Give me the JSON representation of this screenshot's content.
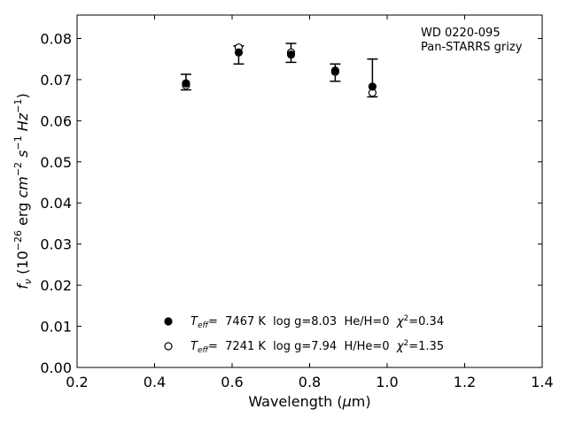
{
  "chart_data": {
    "type": "scatter",
    "xlabel": "Wavelength (μm)",
    "ylabel": "f_ν (10^-26 erg cm^-2 s^-1 Hz^-1)",
    "xlim": [
      0.2,
      1.4
    ],
    "ylim": [
      0.0,
      0.0857
    ],
    "x_ticks": [
      "0.2",
      "0.4",
      "0.6",
      "0.8",
      "1.0",
      "1.2",
      "1.4"
    ],
    "y_ticks": [
      "0.00",
      "0.01",
      "0.02",
      "0.03",
      "0.04",
      "0.05",
      "0.06",
      "0.07",
      "0.08"
    ],
    "grid": false,
    "annotation": [
      "WD 0220-095",
      "Pan-STARRS grizy"
    ],
    "observed": {
      "x": [
        0.481,
        0.617,
        0.752,
        0.866,
        0.962
      ],
      "y": [
        0.0693,
        0.076,
        0.0765,
        0.0718,
        0.0685
      ],
      "err_low": [
        0.0675,
        0.0738,
        0.0742,
        0.0696,
        0.0658
      ],
      "err_high": [
        0.0713,
        0.0782,
        0.0788,
        0.0738,
        0.075
      ]
    },
    "series": [
      {
        "marker": "filled",
        "label_parts": [
          "T",
          "eff",
          "=  7467 K  log g=8.03  He/H=0  ",
          "χ",
          "2",
          "=0.34"
        ],
        "x": [
          0.481,
          0.617,
          0.752,
          0.866,
          0.962
        ],
        "y": [
          0.0691,
          0.0766,
          0.0761,
          0.0722,
          0.0683
        ]
      },
      {
        "marker": "open",
        "label_parts": [
          "T",
          "eff",
          "=  7241 K  log g=7.94  H/He=0  ",
          "χ",
          "2",
          "=1.35"
        ],
        "x": [
          0.481,
          0.617,
          0.752,
          0.866,
          0.962
        ],
        "y": [
          0.0686,
          0.0778,
          0.0766,
          0.0719,
          0.0668
        ]
      }
    ],
    "legend_placement": "bottom-center",
    "colors": {
      "marker": "#000000",
      "axes": "#000000",
      "background": "#ffffff"
    }
  }
}
